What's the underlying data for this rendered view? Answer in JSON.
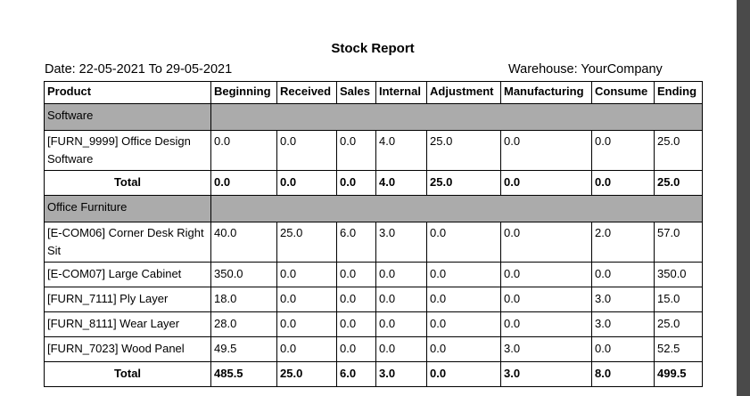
{
  "report": {
    "title": "Stock Report",
    "date_range": "Date: 22-05-2021 To 29-05-2021",
    "warehouse": "Warehouse: YourCompany"
  },
  "table": {
    "headers": [
      "Product",
      "Beginning",
      "Received",
      "Sales",
      "Internal",
      "Adjustment",
      "Manufacturing",
      "Consume",
      "Ending"
    ],
    "groups": [
      {
        "category": "Software",
        "rows": [
          {
            "product": "[FURN_9999] Office Design Software",
            "values": [
              "0.0",
              "0.0",
              "0.0",
              "4.0",
              "25.0",
              "0.0",
              "0.0",
              "25.0"
            ]
          }
        ],
        "total": {
          "label": "Total",
          "values": [
            "0.0",
            "0.0",
            "0.0",
            "4.0",
            "25.0",
            "0.0",
            "0.0",
            "25.0"
          ]
        }
      },
      {
        "category": "Office Furniture",
        "rows": [
          {
            "product": "[E-COM06] Corner Desk Right Sit",
            "values": [
              "40.0",
              "25.0",
              "6.0",
              "3.0",
              "0.0",
              "0.0",
              "2.0",
              "57.0"
            ]
          },
          {
            "product": "[E-COM07] Large Cabinet",
            "values": [
              "350.0",
              "0.0",
              "0.0",
              "0.0",
              "0.0",
              "0.0",
              "0.0",
              "350.0"
            ]
          },
          {
            "product": "[FURN_7111] Ply Layer",
            "values": [
              "18.0",
              "0.0",
              "0.0",
              "0.0",
              "0.0",
              "0.0",
              "3.0",
              "15.0"
            ]
          },
          {
            "product": "[FURN_8111] Wear Layer",
            "values": [
              "28.0",
              "0.0",
              "0.0",
              "0.0",
              "0.0",
              "0.0",
              "3.0",
              "25.0"
            ]
          },
          {
            "product": "[FURN_7023] Wood Panel",
            "values": [
              "49.5",
              "0.0",
              "0.0",
              "0.0",
              "0.0",
              "3.0",
              "0.0",
              "52.5"
            ]
          }
        ],
        "total": {
          "label": "Total",
          "values": [
            "485.5",
            "25.0",
            "6.0",
            "3.0",
            "0.0",
            "3.0",
            "8.0",
            "499.5"
          ]
        }
      }
    ]
  }
}
